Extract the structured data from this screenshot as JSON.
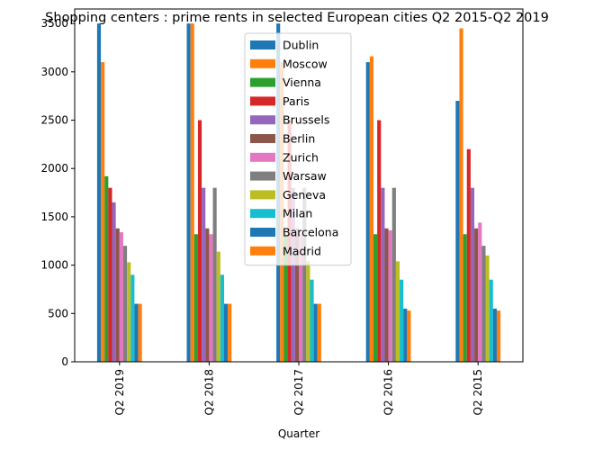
{
  "chart_data": {
    "type": "bar",
    "title": "Shopping centers : prime rents in selected European cities Q2 2015-Q2 2019",
    "xlabel": "Quarter",
    "ylabel": "",
    "categories": [
      "Q2 2019",
      "Q2 2018",
      "Q2 2017",
      "Q2 2016",
      "Q2 2015"
    ],
    "ylim": [
      0,
      3650
    ],
    "yticks": [
      0,
      500,
      1000,
      1500,
      2000,
      2500,
      3000,
      3500
    ],
    "legend_position": "upper center",
    "grid": false,
    "series": [
      {
        "name": "Dublin",
        "color": "#1f77b4",
        "values": [
          3500,
          3500,
          3500,
          3100,
          2700
        ]
      },
      {
        "name": "Moscow",
        "color": "#ff7f0e",
        "values": [
          3100,
          3500,
          3100,
          3160,
          3450
        ]
      },
      {
        "name": "Vienna",
        "color": "#2ca02c",
        "values": [
          1920,
          1320,
          1320,
          1320,
          1320
        ]
      },
      {
        "name": "Paris",
        "color": "#d62728",
        "values": [
          1800,
          2500,
          2500,
          2500,
          2200
        ]
      },
      {
        "name": "Brussels",
        "color": "#9467bd",
        "values": [
          1650,
          1800,
          1800,
          1800,
          1800
        ]
      },
      {
        "name": "Berlin",
        "color": "#8c564b",
        "values": [
          1380,
          1380,
          1380,
          1380,
          1380
        ]
      },
      {
        "name": "Zurich",
        "color": "#e377c2",
        "values": [
          1340,
          1320,
          1320,
          1360,
          1440
        ]
      },
      {
        "name": "Warsaw",
        "color": "#7f7f7f",
        "values": [
          1200,
          1800,
          1800,
          1800,
          1200
        ]
      },
      {
        "name": "Geneva",
        "color": "#bcbd22",
        "values": [
          1030,
          1140,
          1040,
          1040,
          1100
        ]
      },
      {
        "name": "Milan",
        "color": "#17becf",
        "values": [
          900,
          900,
          850,
          850,
          850
        ]
      },
      {
        "name": "Barcelona",
        "color": "#1f77b4",
        "values": [
          600,
          600,
          600,
          550,
          550
        ]
      },
      {
        "name": "Madrid",
        "color": "#ff7f0e",
        "values": [
          600,
          600,
          600,
          530,
          530
        ]
      }
    ]
  }
}
